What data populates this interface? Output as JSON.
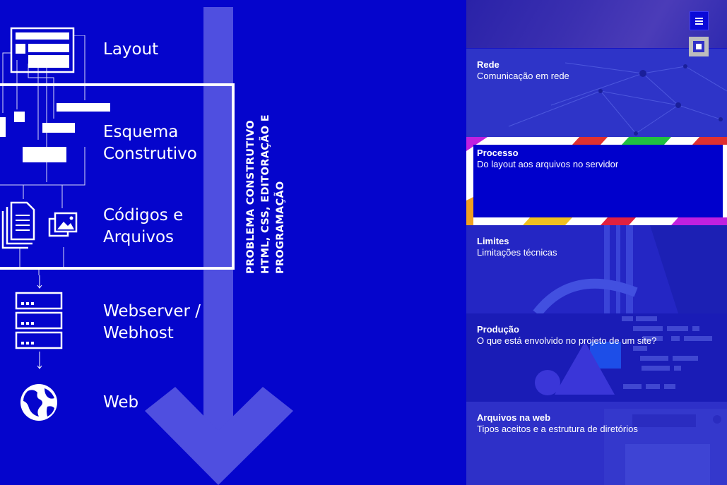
{
  "diagram": {
    "stages": [
      {
        "lines": [
          "Layout"
        ]
      },
      {
        "lines": [
          "Esquema",
          "Construtivo"
        ]
      },
      {
        "lines": [
          "Códigos e",
          "Arquivos"
        ]
      },
      {
        "lines": [
          "Webserver /",
          "Webhost"
        ]
      },
      {
        "lines": [
          "Web"
        ]
      }
    ],
    "vertical_title": [
      "PROBLEMA CONSTRUTIVO",
      "HTML, CSS, EDITORAÇÃO E",
      "PROGRAMAÇÃO"
    ],
    "icons": [
      "layout-icon",
      "schema-icon",
      "documents-icon",
      "images-icon",
      "server-icon",
      "globe-icon",
      "down-arrow-icon"
    ]
  },
  "sidebar": {
    "menu_icon": "hamburger-icon",
    "square_icon": "square-icon",
    "cards": [
      {
        "title": "Rede",
        "subtitle": "Comunicação em rede"
      },
      {
        "title": "Processo",
        "subtitle": "Do layout aos arquivos no servidor"
      },
      {
        "title": "Limites",
        "subtitle": "Limitações técnicas"
      },
      {
        "title": "Produção",
        "subtitle": "O que está envolvido no projeto de um site?"
      },
      {
        "title": "Arquivos na web",
        "subtitle": "Tipos aceitos e a estrutura de diretórios"
      }
    ]
  },
  "colors": {
    "primary_blue": "#0505cc",
    "arrow": "#4f4fe0",
    "white": "#ffffff"
  }
}
